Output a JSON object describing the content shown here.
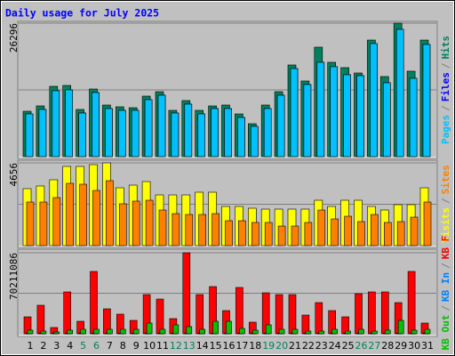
{
  "chart_data": [
    {
      "type": "bar",
      "title": "Daily usage for July 2025",
      "ylim": [
        0,
        26296
      ],
      "yticks": [
        26296
      ],
      "legend_separator": "/",
      "series": [
        {
          "name": "Hits",
          "color": "#00805c",
          "values": [
            8941,
            9992,
            13849,
            14025,
            9291,
            13323,
            10168,
            9817,
            9642,
            11921,
            12797,
            9116,
            11044,
            9116,
            9992,
            10168,
            8415,
            6486,
            10168,
            12797,
            18057,
            14901,
            21563,
            18583,
            17531,
            16479,
            22964,
            15777,
            26296,
            16829,
            22964
          ]
        },
        {
          "name": "Files",
          "color": "#0000ff",
          "values": [
            8414,
            9291,
            12972,
            13148,
            8590,
            12622,
            9466,
            9116,
            9116,
            11219,
            12096,
            8590,
            10343,
            8414,
            9466,
            9466,
            7713,
            5960,
            9466,
            12096,
            17355,
            14199,
            18582,
            17706,
            16128,
            15952,
            22264,
            14550,
            25069,
            15426,
            22088
          ]
        },
        {
          "name": "Pages",
          "color": "#00c0ff",
          "values": [
            8414,
            9291,
            12972,
            13148,
            8590,
            12622,
            9466,
            9116,
            9116,
            11219,
            12096,
            8590,
            10343,
            8414,
            9466,
            9466,
            7713,
            5960,
            9466,
            12096,
            17355,
            14199,
            18582,
            17706,
            16128,
            15952,
            22264,
            14550,
            25069,
            15426,
            22088
          ]
        }
      ]
    },
    {
      "type": "bar",
      "ylim": [
        0,
        4656
      ],
      "yticks": [
        4656
      ],
      "legend_separator": "/",
      "series": [
        {
          "name": "Visits",
          "color": "#ffff00",
          "values": [
            3204,
            3354,
            3705,
            4456,
            4456,
            4556,
            4656,
            3254,
            3404,
            3604,
            2853,
            2853,
            2853,
            3004,
            3004,
            2203,
            2203,
            2103,
            2053,
            2053,
            2053,
            2053,
            2553,
            2203,
            2553,
            2553,
            2203,
            2003,
            2303,
            2303,
            3254
          ]
        },
        {
          "name": "Sites",
          "color": "#ff8000",
          "values": [
            2453,
            2453,
            2703,
            3504,
            3454,
            3104,
            3654,
            2353,
            2503,
            2553,
            2003,
            1802,
            1752,
            1752,
            1802,
            1402,
            1402,
            1302,
            1302,
            1101,
            1101,
            1302,
            2003,
            1502,
            1652,
            1352,
            1752,
            1302,
            1352,
            1602,
            2453
          ]
        }
      ]
    },
    {
      "type": "bar",
      "ylim": [
        0,
        70211086
      ],
      "yticks": [
        70211086
      ],
      "legend_separator": "/",
      "categories": [
        "1",
        "2",
        "3",
        "4",
        "5",
        "6",
        "7",
        "8",
        "9",
        "10",
        "11",
        "12",
        "13",
        "14",
        "15",
        "16",
        "17",
        "18",
        "19",
        "20",
        "21",
        "22",
        "23",
        "24",
        "25",
        "26",
        "27",
        "28",
        "29",
        "30",
        "31"
      ],
      "category_colors": [
        "#000000",
        "#000000",
        "#000000",
        "#000000",
        "#00805c",
        "#00805c",
        "#000000",
        "#000000",
        "#000000",
        "#000000",
        "#000000",
        "#00805c",
        "#00805c",
        "#000000",
        "#000000",
        "#000000",
        "#000000",
        "#000000",
        "#00805c",
        "#00805c",
        "#000000",
        "#000000",
        "#000000",
        "#000000",
        "#000000",
        "#00805c",
        "#00805c",
        "#000000",
        "#000000",
        "#000000",
        "#000000"
      ],
      "series": [
        {
          "name": "KB F",
          "color": "#ff0000",
          "values": [
            14659450,
            24689600,
            5400850,
            36262850,
            10801700,
            54008500,
            21603400,
            16974100,
            11573250,
            33948200,
            30090450,
            13116350,
            70211086,
            33948200,
            40892150,
            20060300,
            40120600,
            10030150,
            35491300,
            33948200,
            33948200,
            16202550,
            27004250,
            20060300,
            14659450,
            34719750,
            36262850,
            36262850,
            27004250,
            54008500,
            9258600
          ]
        },
        {
          "name": "KB In",
          "color": "#0080ff",
          "values": [
            500000,
            500000,
            500000,
            500000,
            500000,
            500000,
            500000,
            500000,
            500000,
            500000,
            500000,
            500000,
            500000,
            500000,
            500000,
            500000,
            500000,
            500000,
            500000,
            500000,
            500000,
            500000,
            500000,
            500000,
            500000,
            500000,
            500000,
            500000,
            500000,
            500000,
            500000
          ]
        },
        {
          "name": "KB Out",
          "color": "#00c000",
          "values": [
            3086200,
            2314650,
            1543100,
            3086200,
            3857750,
            3857750,
            3857750,
            3857750,
            3857750,
            9258600,
            3857750,
            7715500,
            6172400,
            3857750,
            10801700,
            10801700,
            4629300,
            3086200,
            7715500,
            3857750,
            3857750,
            2314650,
            2314650,
            3857750,
            2314650,
            3857750,
            2314650,
            3086200,
            11573250,
            3086200,
            3857750
          ]
        }
      ]
    }
  ]
}
